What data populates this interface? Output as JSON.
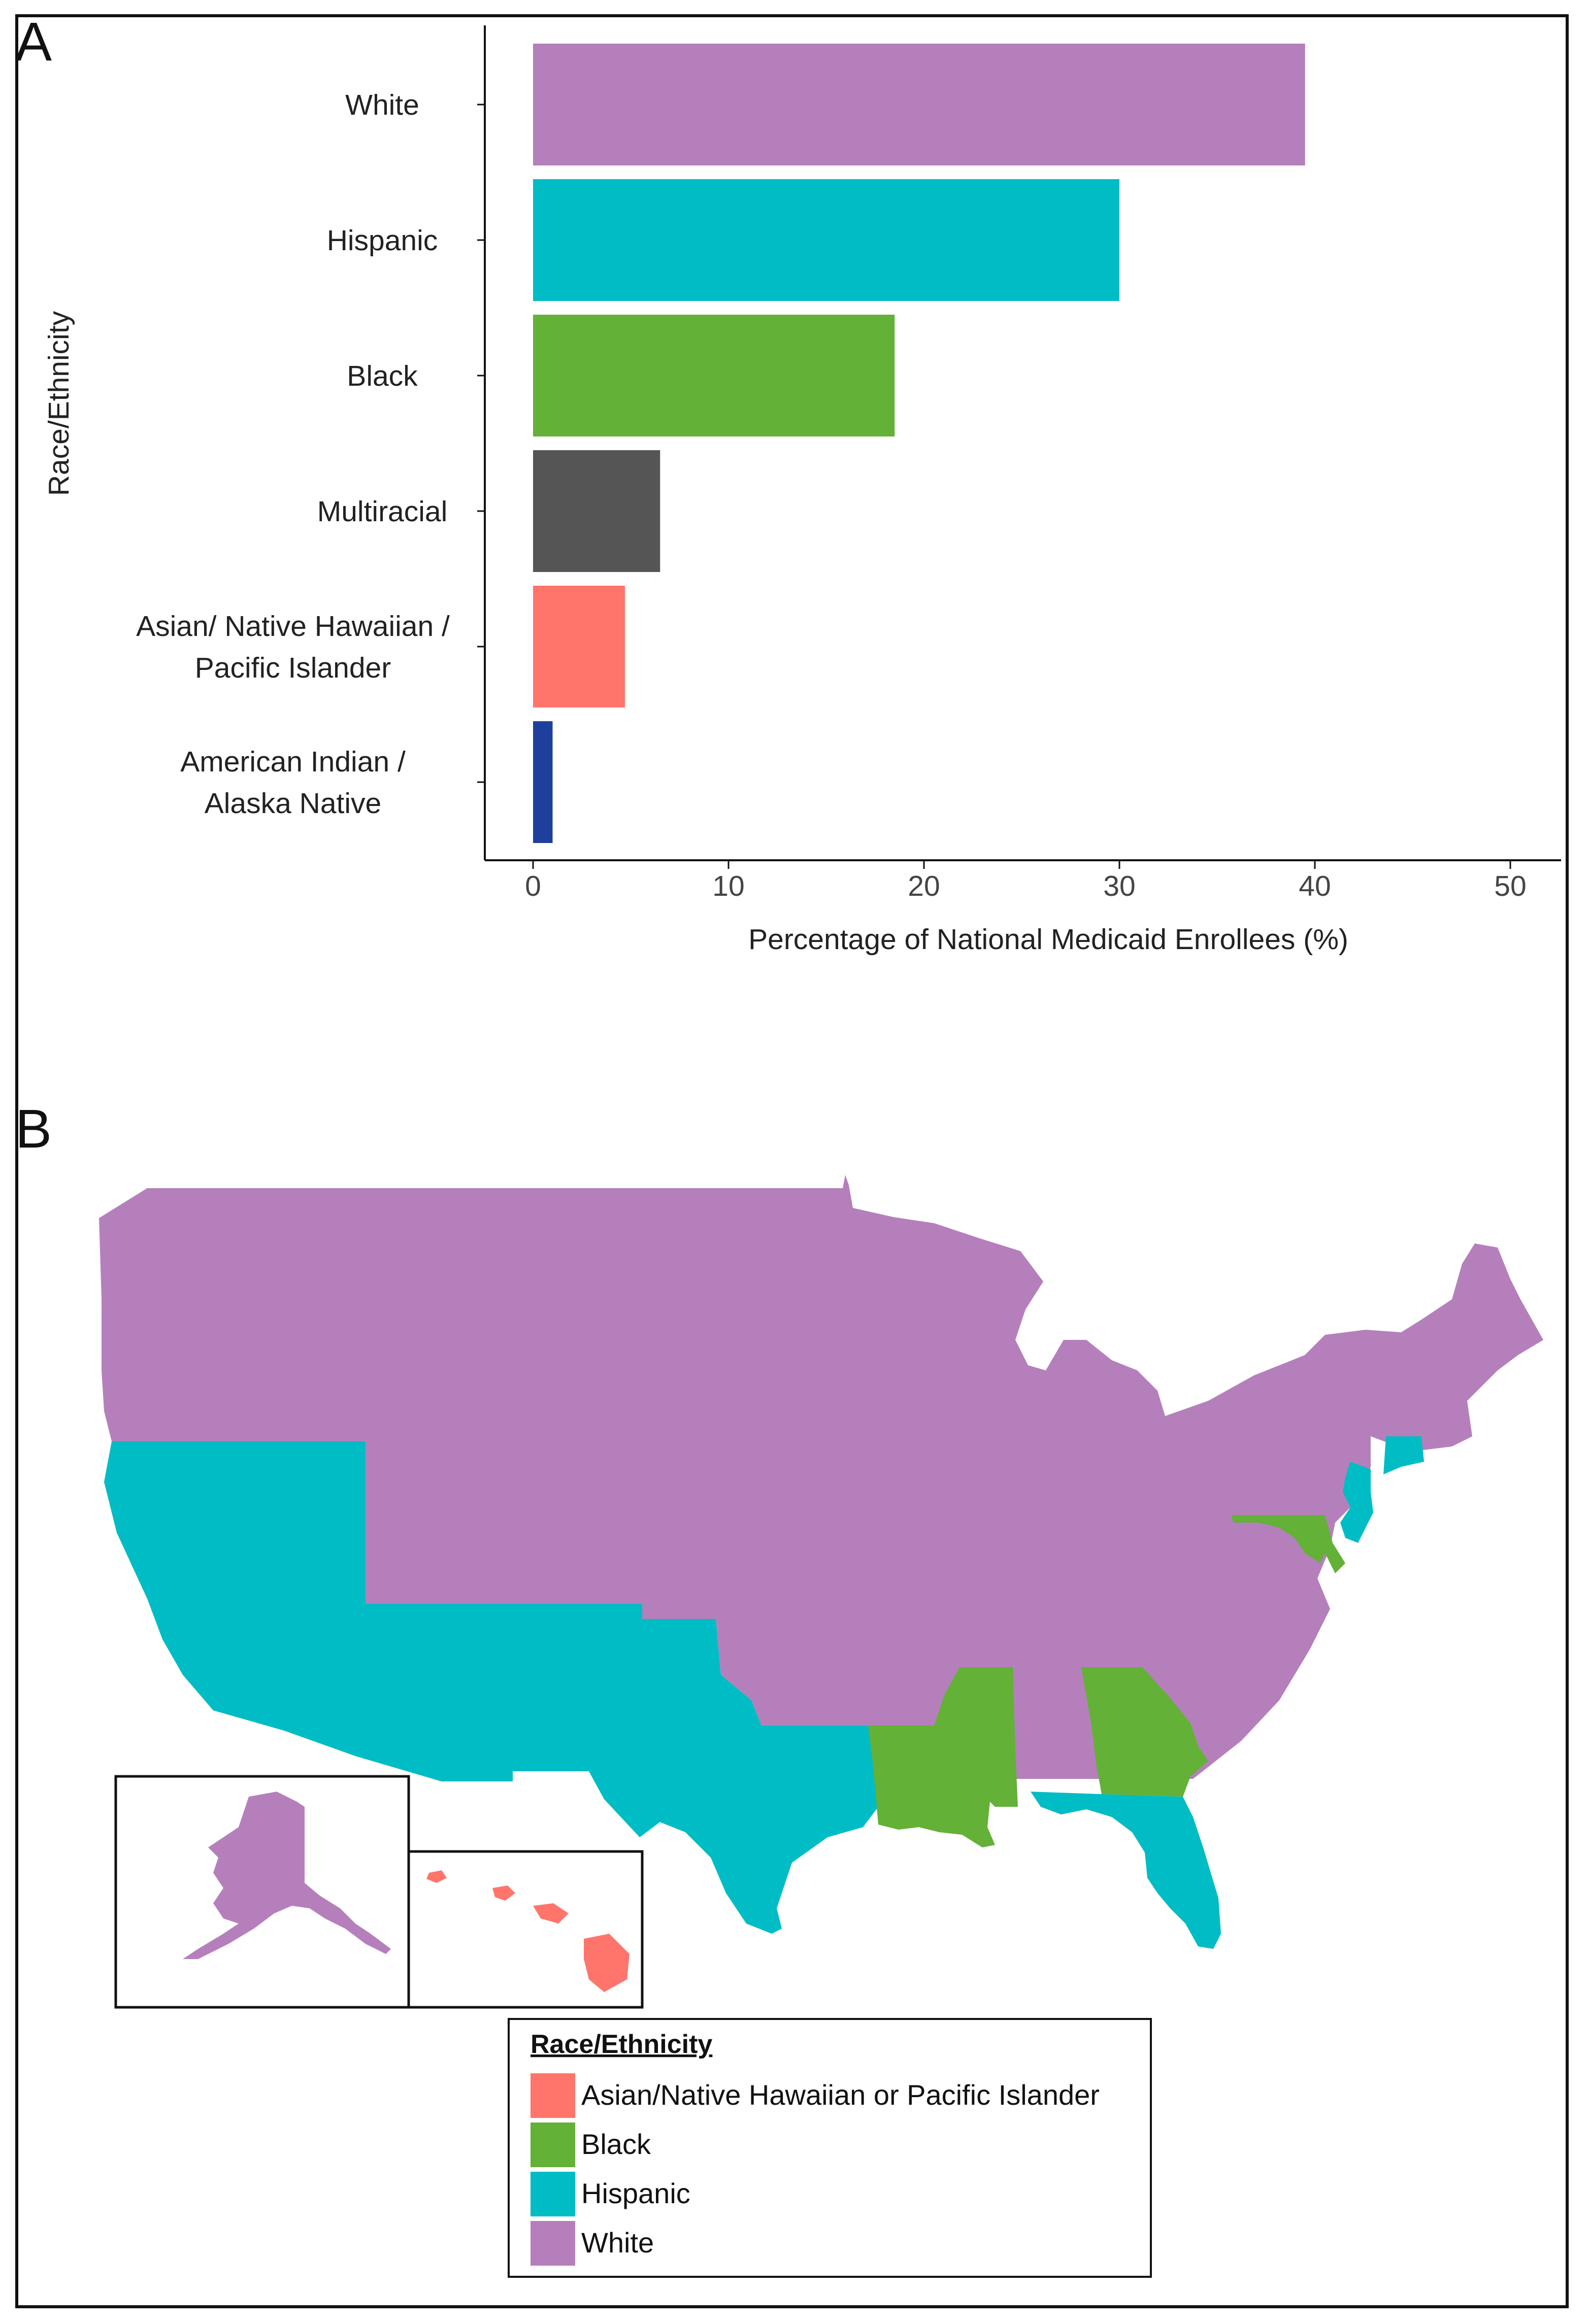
{
  "panel_a": {
    "letter": "A"
  },
  "panel_b": {
    "letter": "B"
  },
  "chart_data": [
    {
      "type": "bar",
      "orientation": "horizontal",
      "categories": [
        "White",
        "Hispanic",
        "Black",
        "Multiracial",
        "Asian/ Native Hawaiian / Pacific Islander",
        "American Indian / Alaska Native"
      ],
      "category_lines": [
        [
          "White"
        ],
        [
          "Hispanic"
        ],
        [
          "Black"
        ],
        [
          "Multiracial"
        ],
        [
          "Asian/ Native Hawaiian /",
          "Pacific Islander"
        ],
        [
          "American Indian /",
          "Alaska Native"
        ]
      ],
      "values": [
        39.5,
        30.0,
        18.5,
        6.5,
        4.7,
        1.0
      ],
      "colors": [
        "#b57fbc",
        "#00bcc4",
        "#63b136",
        "#555555",
        "#ff756c",
        "#1f3f9c"
      ],
      "xlabel": "Percentage of National Medicaid Enrollees (%)",
      "ylabel": "Race/Ethnicity",
      "xlim": [
        0,
        50
      ],
      "xticks": [
        0,
        10,
        20,
        30,
        40,
        50
      ],
      "grid": false
    }
  ],
  "map": {
    "colors": {
      "asian_nhpi": "#ff756c",
      "black": "#63b136",
      "hispanic": "#00bcc4",
      "white": "#b57fbc"
    },
    "regions": {
      "mainland_white": "white",
      "southwest_hispanic": "hispanic",
      "florida": "hispanic",
      "louisiana": "black",
      "mississippi": "black",
      "georgia": "black",
      "maryland": "black",
      "new_jersey": "hispanic",
      "connecticut": "hispanic",
      "alaska": "white",
      "hawaii": "asian_nhpi"
    },
    "legend": {
      "title": "Race/Ethnicity",
      "items": [
        {
          "label": "Asian/Native Hawaiian or Pacific Islander",
          "color": "#ff756c"
        },
        {
          "label": "Black",
          "color": "#63b136"
        },
        {
          "label": "Hispanic",
          "color": "#00bcc4"
        },
        {
          "label": "White",
          "color": "#b57fbc"
        }
      ]
    }
  }
}
